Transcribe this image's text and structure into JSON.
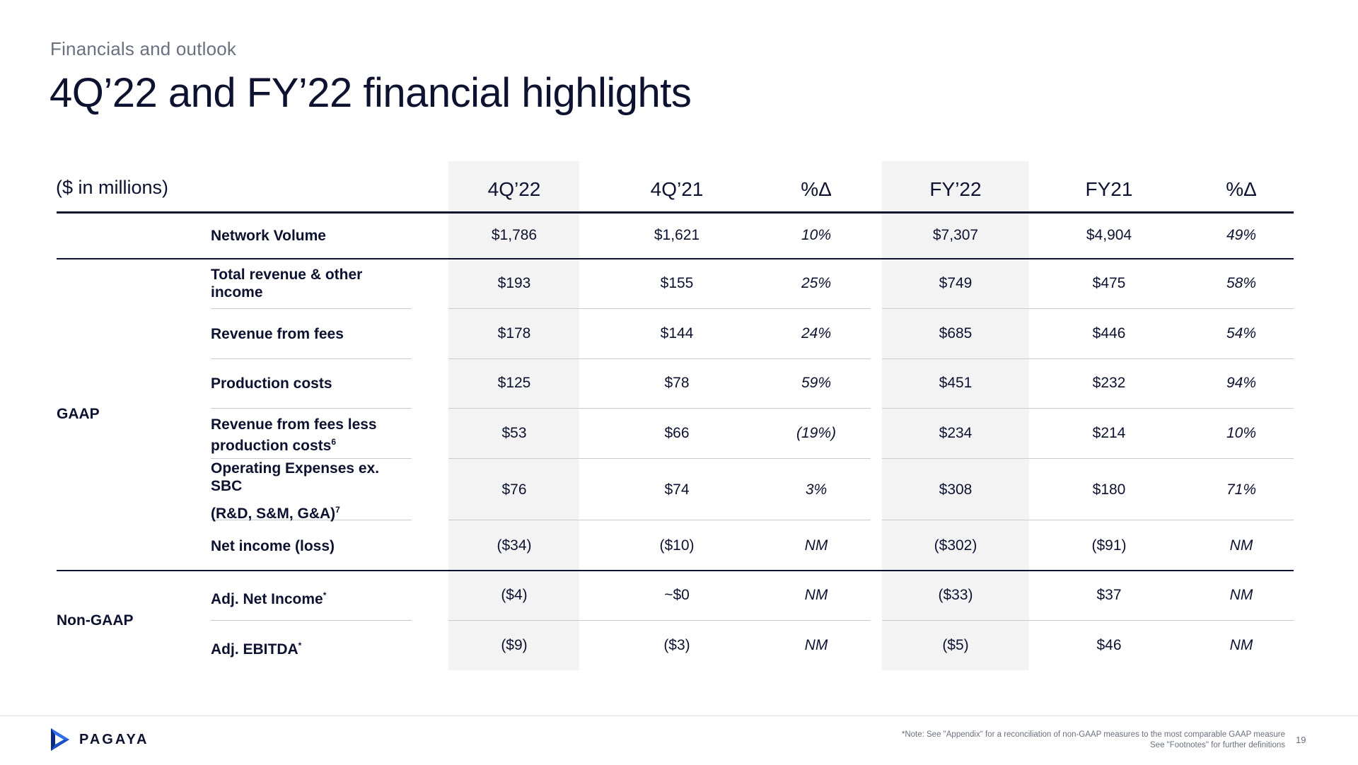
{
  "header": {
    "eyebrow": "Financials and outlook",
    "title": "4Q’22 and FY’22 financial highlights"
  },
  "table": {
    "units_label": "($ in millions)",
    "columns": [
      "4Q’22",
      "4Q’21",
      "%Δ",
      "FY’22",
      "FY21",
      "%Δ"
    ],
    "groups": [
      "GAAP",
      "Non-GAAP"
    ],
    "rows": [
      {
        "label": "Network Volume",
        "values": [
          "$1,786",
          "$1,621",
          "10%",
          "$7,307",
          "$4,904",
          "49%"
        ]
      },
      {
        "label": "Total revenue & other income",
        "values": [
          "$193",
          "$155",
          "25%",
          "$749",
          "$475",
          "58%"
        ]
      },
      {
        "label": "Revenue from fees",
        "values": [
          "$178",
          "$144",
          "24%",
          "$685",
          "$446",
          "54%"
        ]
      },
      {
        "label": "Production costs",
        "values": [
          "$125",
          "$78",
          "59%",
          "$451",
          "$232",
          "94%"
        ]
      },
      {
        "label": "Revenue from fees less production costs",
        "sup": "6",
        "values": [
          "$53",
          "$66",
          "(19%)",
          "$234",
          "$214",
          "10%"
        ]
      },
      {
        "label": "Operating Expenses ex. SBC",
        "label2": "(R&D, S&M, G&A)",
        "sup": "7",
        "values": [
          "$76",
          "$74",
          "3%",
          "$308",
          "$180",
          "71%"
        ]
      },
      {
        "label": "Net income (loss)",
        "values": [
          "($34)",
          "($10)",
          "NM",
          "($302)",
          "($91)",
          "NM"
        ]
      },
      {
        "label": "Adj. Net Income",
        "sup": "*",
        "values": [
          "($4)",
          "~$0",
          "NM",
          "($33)",
          "$37",
          "NM"
        ]
      },
      {
        "label": "Adj. EBITDA",
        "sup": "*",
        "values": [
          "($9)",
          "($3)",
          "NM",
          "($5)",
          "$46",
          "NM"
        ]
      }
    ]
  },
  "footer": {
    "logo_text": "PAGAYA",
    "note_prefix": "*Note:",
    "note_line1": "See \"Appendix\" for a reconciliation of non-GAAP measures to the most comparable GAAP measure",
    "note_line2": "See \"Footnotes\" for  further definitions",
    "page_number": "19"
  },
  "colors": {
    "text": "#0d1230",
    "muted": "#6b7080",
    "shade": "#f3f3f4",
    "logo_blue": "#2d6ff0",
    "logo_dark": "#0b2a7a"
  }
}
